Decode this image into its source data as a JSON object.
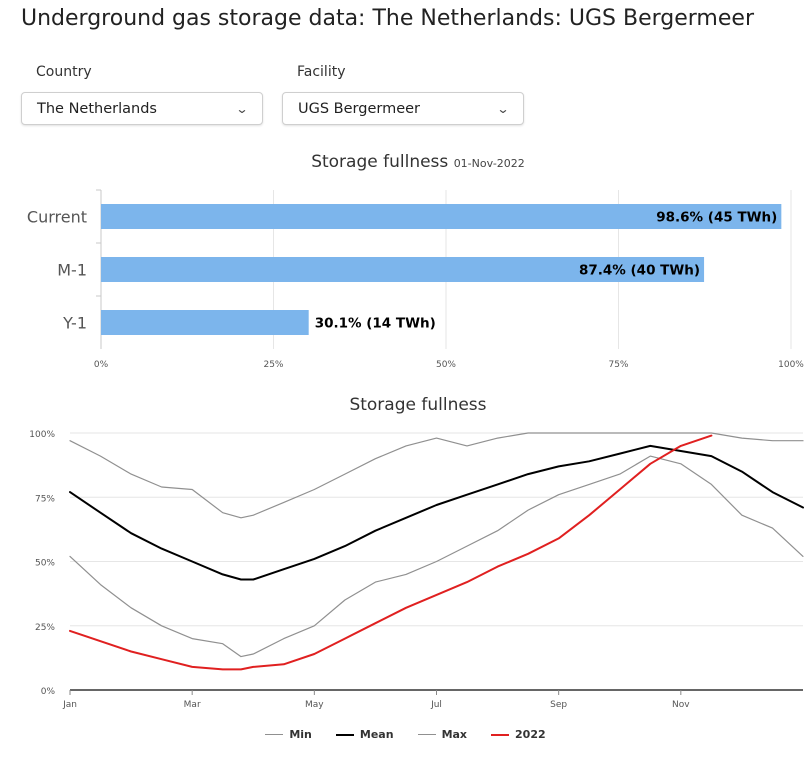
{
  "page": {
    "title": "Underground gas storage data: The Netherlands: UGS Bergermeer"
  },
  "selectors": {
    "country": {
      "label": "Country",
      "value": "The Netherlands"
    },
    "facility": {
      "label": "Facility",
      "value": "UGS Bergermeer"
    }
  },
  "chart_data": [
    {
      "type": "bar",
      "orientation": "horizontal",
      "title": "Storage fullness",
      "subtitle": "01-Nov-2022",
      "categories": [
        "Current",
        "M-1",
        "Y-1"
      ],
      "values": [
        98.6,
        87.4,
        30.1
      ],
      "data_labels": [
        "98.6% (45 TWh)",
        "87.4% (40 TWh)",
        "30.1% (14 TWh)"
      ],
      "xlim": [
        0,
        100
      ],
      "xticks": [
        0,
        25,
        50,
        75,
        100
      ],
      "xtick_labels": [
        "0%",
        "25%",
        "50%",
        "75%",
        "100%"
      ],
      "grid": true,
      "colors": {
        "bar": "#7cb5ec"
      }
    },
    {
      "type": "line",
      "title": "Storage fullness",
      "x_unit": "month",
      "xlim": [
        1,
        13
      ],
      "ylim": [
        0,
        100
      ],
      "xticks": [
        1,
        3,
        5,
        7,
        9,
        11
      ],
      "xtick_labels": [
        "Jan",
        "Mar",
        "May",
        "Jul",
        "Sep",
        "Nov"
      ],
      "yticks": [
        0,
        25,
        50,
        75,
        100
      ],
      "ytick_labels": [
        "0%",
        "25%",
        "50%",
        "75%",
        "100%"
      ],
      "grid": true,
      "legend": "bottom",
      "x": [
        1,
        1.5,
        2,
        2.5,
        3,
        3.5,
        3.8,
        4,
        4.5,
        5,
        5.5,
        6,
        6.5,
        7,
        7.5,
        8,
        8.5,
        9,
        9.5,
        10,
        10.5,
        11,
        11.5,
        12,
        12.5,
        13
      ],
      "series": [
        {
          "name": "Min",
          "color": "#909090",
          "width": 1.2,
          "values": [
            52,
            41,
            32,
            25,
            20,
            18,
            13,
            14,
            20,
            25,
            35,
            42,
            45,
            50,
            56,
            62,
            70,
            76,
            80,
            84,
            91,
            88,
            80,
            68,
            63,
            52
          ]
        },
        {
          "name": "Mean",
          "color": "#000000",
          "width": 2,
          "values": [
            77,
            69,
            61,
            55,
            50,
            45,
            43,
            43,
            47,
            51,
            56,
            62,
            67,
            72,
            76,
            80,
            84,
            87,
            89,
            92,
            95,
            93,
            91,
            85,
            77,
            71
          ]
        },
        {
          "name": "Max",
          "color": "#909090",
          "width": 1.2,
          "values": [
            97,
            91,
            84,
            79,
            78,
            69,
            67,
            68,
            73,
            78,
            84,
            90,
            95,
            98,
            95,
            98,
            100,
            100,
            100,
            100,
            100,
            100,
            100,
            98,
            97,
            97
          ]
        },
        {
          "name": "2022",
          "color": "#e02020",
          "width": 2,
          "values": [
            23,
            19,
            15,
            12,
            9,
            8,
            8,
            9,
            10,
            14,
            20,
            26,
            32,
            37,
            42,
            48,
            53,
            59,
            68,
            78,
            88,
            95,
            99,
            null,
            null,
            null
          ]
        }
      ]
    }
  ]
}
